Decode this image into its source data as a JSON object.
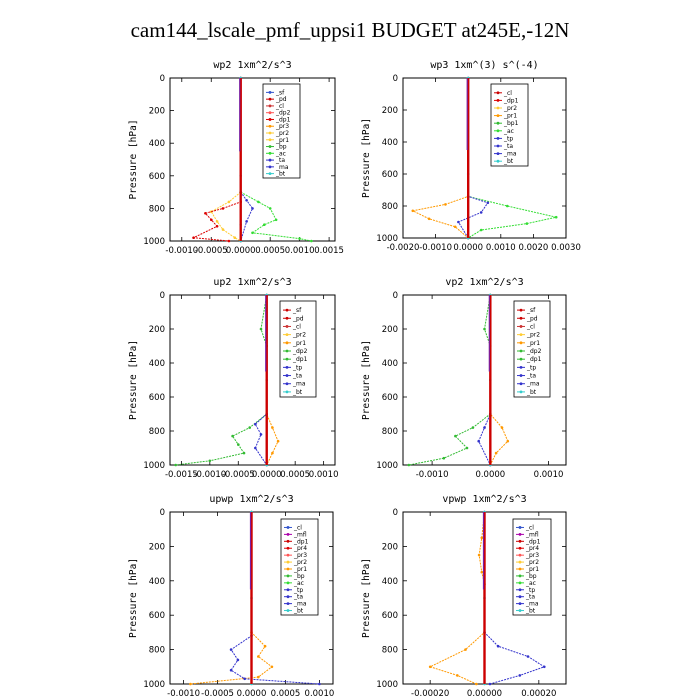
{
  "figure": {
    "title": "cam144_lscale_pmf_uppsi1  BUDGET at245E,-12N"
  },
  "chart_data": [
    {
      "type": "line",
      "panel_title": "wp2   1xm^2/s^3",
      "ylabel": "Pressure  [hPa]",
      "xlim": [
        -0.0012,
        0.0016
      ],
      "ylim": [
        1000,
        0
      ],
      "xticks": [
        -0.001,
        -0.0005,
        0.0,
        0.0005,
        0.001,
        0.0015
      ],
      "xtick_labels": [
        "-0.0010",
        "-0.0005",
        "0.0000",
        "0.0005",
        "0.0010",
        "0.0015"
      ],
      "yticks": [
        0,
        200,
        400,
        600,
        800,
        1000
      ],
      "legend": [
        "_sf",
        "_pd",
        "_cl",
        "_dp2",
        "_dp1",
        "_pr3",
        "_pr2",
        "_pr1",
        "_bp",
        "_ac",
        "_ta",
        "_ma",
        "_bt"
      ],
      "colors": [
        "#3355cc",
        "#cc0000",
        "#cc3333",
        "#ff5555",
        "#dd0000",
        "#ff9900",
        "#ffcc33",
        "#ffcc33",
        "#33bb33",
        "#33dd33",
        "#3333cc",
        "#3333cc",
        "#33cccc"
      ],
      "series": [
        {
          "name": "_pr1",
          "x": [
            0,
            0,
            -0.0002,
            -0.0005,
            -0.0004,
            -0.0003,
            -0.0001,
            0
          ],
          "y": [
            0,
            700,
            760,
            820,
            880,
            930,
            980,
            1000
          ]
        },
        {
          "name": "_ac",
          "x": [
            0,
            0,
            0.0003,
            0.0005,
            0.0006,
            0.0004,
            0.0002,
            0.001,
            0.0012
          ],
          "y": [
            0,
            700,
            760,
            800,
            870,
            900,
            950,
            985,
            1000
          ]
        },
        {
          "name": "_dp1",
          "x": [
            0,
            0,
            -0.0003,
            -0.0006,
            -0.0005,
            -0.0004,
            -0.0008,
            -0.0002
          ],
          "y": [
            0,
            760,
            800,
            830,
            870,
            910,
            980,
            1000
          ]
        },
        {
          "name": "_ta",
          "x": [
            0,
            0,
            0.0001,
            0.0002,
            0.0001,
            0
          ],
          "y": [
            0,
            700,
            750,
            800,
            880,
            1000
          ]
        },
        {
          "name": "_bt",
          "x": [
            0,
            0,
            0,
            0
          ],
          "y": [
            0,
            600,
            900,
            1000
          ]
        }
      ]
    },
    {
      "type": "line",
      "panel_title": "wp3   1xm^(3) s^(-4)",
      "ylabel": "Pressure  [hPa]",
      "xlim": [
        -0.002,
        0.003
      ],
      "ylim": [
        1000,
        0
      ],
      "xticks": [
        -0.002,
        -0.001,
        0.0,
        0.001,
        0.002,
        0.003
      ],
      "xtick_labels": [
        "-0.0020",
        "-0.0010",
        "0.0000",
        "0.0010",
        "0.0020",
        "0.0030"
      ],
      "yticks": [
        0,
        200,
        400,
        600,
        800,
        1000
      ],
      "legend": [
        "_cl",
        "_dp1",
        "_pr2",
        "_pr1",
        "_bp1",
        "_ac",
        "_tp",
        "_ta",
        "_ma",
        "_bt"
      ],
      "colors": [
        "#cc0000",
        "#dd0000",
        "#ffcc33",
        "#ff9900",
        "#33bb33",
        "#33dd33",
        "#3333cc",
        "#3333cc",
        "#3333cc",
        "#33cccc"
      ],
      "series": [
        {
          "name": "_pr1",
          "x": [
            0,
            0,
            -0.0007,
            -0.0017,
            -0.0012,
            -0.0004,
            0
          ],
          "y": [
            0,
            740,
            790,
            830,
            880,
            930,
            1000
          ]
        },
        {
          "name": "_ac",
          "x": [
            0,
            0,
            0.0012,
            0.0027,
            0.0018,
            0.0004,
            0
          ],
          "y": [
            0,
            740,
            800,
            870,
            910,
            950,
            1000
          ]
        },
        {
          "name": "_ta",
          "x": [
            0,
            0,
            0.0006,
            0.0004,
            -0.0003,
            0
          ],
          "y": [
            0,
            740,
            780,
            840,
            900,
            1000
          ]
        },
        {
          "name": "_bt",
          "x": [
            0,
            0,
            0
          ],
          "y": [
            0,
            600,
            1000
          ]
        }
      ]
    },
    {
      "type": "line",
      "panel_title": "up2   1xm^2/s^3",
      "ylabel": "Pressure  [hPa]",
      "xlim": [
        -0.0017,
        0.0012
      ],
      "ylim": [
        1000,
        0
      ],
      "xticks": [
        -0.0015,
        -0.001,
        -0.0005,
        0.0,
        0.0005,
        0.001
      ],
      "xtick_labels": [
        "-0.0015",
        "-0.0010",
        "-0.0005",
        "0.0000",
        "0.0005",
        "0.0010"
      ],
      "yticks": [
        0,
        200,
        400,
        600,
        800,
        1000
      ],
      "legend": [
        "_sf",
        "_pd",
        "_cl",
        "_pr2",
        "_pr1",
        "_dp2",
        "_dp1",
        "_tp",
        "_ta",
        "_ma",
        "_bt"
      ],
      "colors": [
        "#cc0000",
        "#cc0000",
        "#cc3333",
        "#ffcc33",
        "#ff9900",
        "#33bb33",
        "#33bb33",
        "#3333cc",
        "#3333cc",
        "#3333cc",
        "#33cccc"
      ],
      "series": [
        {
          "name": "_dp1",
          "x": [
            0,
            -0.0001,
            0,
            0,
            -0.0003,
            -0.0006,
            -0.0005,
            -0.0004,
            -0.001,
            -0.0016
          ],
          "y": [
            0,
            200,
            300,
            700,
            780,
            830,
            880,
            930,
            975,
            1000
          ]
        },
        {
          "name": "_pr1",
          "x": [
            0,
            0,
            0.0001,
            0.0002,
            0.0001,
            0
          ],
          "y": [
            0,
            700,
            780,
            860,
            930,
            1000
          ]
        },
        {
          "name": "_ta",
          "x": [
            0,
            0,
            -0.0002,
            -0.0001,
            -0.0002,
            0
          ],
          "y": [
            0,
            700,
            760,
            820,
            900,
            1000
          ]
        },
        {
          "name": "_bt",
          "x": [
            0,
            0,
            0
          ],
          "y": [
            0,
            500,
            1000
          ]
        }
      ]
    },
    {
      "type": "line",
      "panel_title": "vp2   1xm^2/s^3",
      "ylabel": "Pressure  [hPa]",
      "xlim": [
        -0.0015,
        0.0013
      ],
      "ylim": [
        1000,
        0
      ],
      "xticks": [
        -0.001,
        0.0,
        0.001
      ],
      "xtick_labels": [
        "-0.0010",
        "0.0000",
        "0.0010"
      ],
      "yticks": [
        0,
        200,
        400,
        600,
        800,
        1000
      ],
      "legend": [
        "_sf",
        "_pd",
        "_cl",
        "_pr2",
        "_pr1",
        "_dp2",
        "_dp1",
        "_tp",
        "_ta",
        "_ma",
        "_bt"
      ],
      "colors": [
        "#cc0000",
        "#cc0000",
        "#cc3333",
        "#ffcc33",
        "#ff9900",
        "#33bb33",
        "#33bb33",
        "#3333cc",
        "#3333cc",
        "#3333cc",
        "#33cccc"
      ],
      "series": [
        {
          "name": "_dp1",
          "x": [
            0,
            -0.0001,
            0,
            0,
            -0.0003,
            -0.0006,
            -0.0004,
            -0.0008,
            -0.0014
          ],
          "y": [
            0,
            200,
            300,
            700,
            780,
            830,
            900,
            960,
            1000
          ]
        },
        {
          "name": "_pr1",
          "x": [
            0,
            0,
            0.0002,
            0.0003,
            0.0001,
            0
          ],
          "y": [
            0,
            700,
            780,
            860,
            930,
            1000
          ]
        },
        {
          "name": "_ta",
          "x": [
            0,
            0,
            -0.0001,
            -0.0002,
            0
          ],
          "y": [
            0,
            700,
            780,
            860,
            1000
          ]
        },
        {
          "name": "_bt",
          "x": [
            0,
            0,
            0
          ],
          "y": [
            0,
            500,
            1000
          ]
        }
      ]
    },
    {
      "type": "line",
      "panel_title": "upwp   1xm^2/s^3",
      "ylabel": "Pressure  [hPa]",
      "xlim": [
        -0.0012,
        0.0012
      ],
      "ylim": [
        1000,
        0
      ],
      "xticks": [
        -0.001,
        -0.0005,
        0.0,
        0.0005,
        0.001
      ],
      "xtick_labels": [
        "-0.0010",
        "-0.0005",
        "0.0000",
        "0.0005",
        "0.0010"
      ],
      "yticks": [
        0,
        200,
        400,
        600,
        800,
        1000
      ],
      "legend": [
        "_cl",
        "_mfl",
        "_dp1",
        "_pr4",
        "_pr3",
        "_pr2",
        "_pr1",
        "_bp",
        "_ac",
        "_tp",
        "_ta",
        "_ma",
        "_bt"
      ],
      "colors": [
        "#3355cc",
        "#aa00aa",
        "#cc0000",
        "#dd0000",
        "#ff5555",
        "#ffcc33",
        "#ff9900",
        "#33bb33",
        "#33dd33",
        "#3333cc",
        "#3333cc",
        "#3333cc",
        "#33cccc"
      ],
      "series": [
        {
          "name": "_pr1",
          "x": [
            0,
            0,
            0.0002,
            0.0001,
            0.0003,
            0.0001,
            -0.0009
          ],
          "y": [
            0,
            700,
            780,
            840,
            900,
            960,
            1000
          ]
        },
        {
          "name": "_ta",
          "x": [
            0,
            0,
            -0.0003,
            -0.0002,
            -0.0003,
            -0.0001,
            0.001
          ],
          "y": [
            0,
            720,
            800,
            860,
            920,
            970,
            1000
          ]
        },
        {
          "name": "_bt",
          "x": [
            0,
            0,
            0
          ],
          "y": [
            0,
            500,
            1000
          ]
        }
      ]
    },
    {
      "type": "line",
      "panel_title": "vpwp   1xm^2/s^3",
      "ylabel": "Pressure  [hPa]",
      "xlim": [
        -0.0003,
        0.0003
      ],
      "ylim": [
        1000,
        0
      ],
      "xticks": [
        -0.0002,
        0.0,
        0.0002
      ],
      "xtick_labels": [
        "-0.00020",
        "0.00000",
        "0.00020"
      ],
      "yticks": [
        0,
        200,
        400,
        600,
        800,
        1000
      ],
      "legend": [
        "_cl",
        "_mfl",
        "_dp1",
        "_pr4",
        "_pr3",
        "_pr2",
        "_pr1",
        "_bp",
        "_ac",
        "_tp",
        "_ta",
        "_ma",
        "_bt"
      ],
      "colors": [
        "#3355cc",
        "#aa00aa",
        "#cc0000",
        "#dd0000",
        "#ff5555",
        "#ffcc33",
        "#ff9900",
        "#33bb33",
        "#33dd33",
        "#3333cc",
        "#3333cc",
        "#3333cc",
        "#33cccc"
      ],
      "series": [
        {
          "name": "_pr1",
          "x": [
            0,
            -1e-05,
            -2e-05,
            -1e-05,
            0,
            0,
            -7e-05,
            -0.0002,
            -0.0001,
            -3e-05
          ],
          "y": [
            0,
            150,
            250,
            350,
            420,
            700,
            800,
            900,
            950,
            1000
          ]
        },
        {
          "name": "_ta",
          "x": [
            0,
            0,
            5e-05,
            0.00016,
            0.00022,
            0.00013,
            2e-05
          ],
          "y": [
            0,
            700,
            780,
            840,
            900,
            950,
            1000
          ]
        },
        {
          "name": "_bt",
          "x": [
            0,
            0,
            0
          ],
          "y": [
            0,
            500,
            1000
          ]
        }
      ]
    }
  ]
}
